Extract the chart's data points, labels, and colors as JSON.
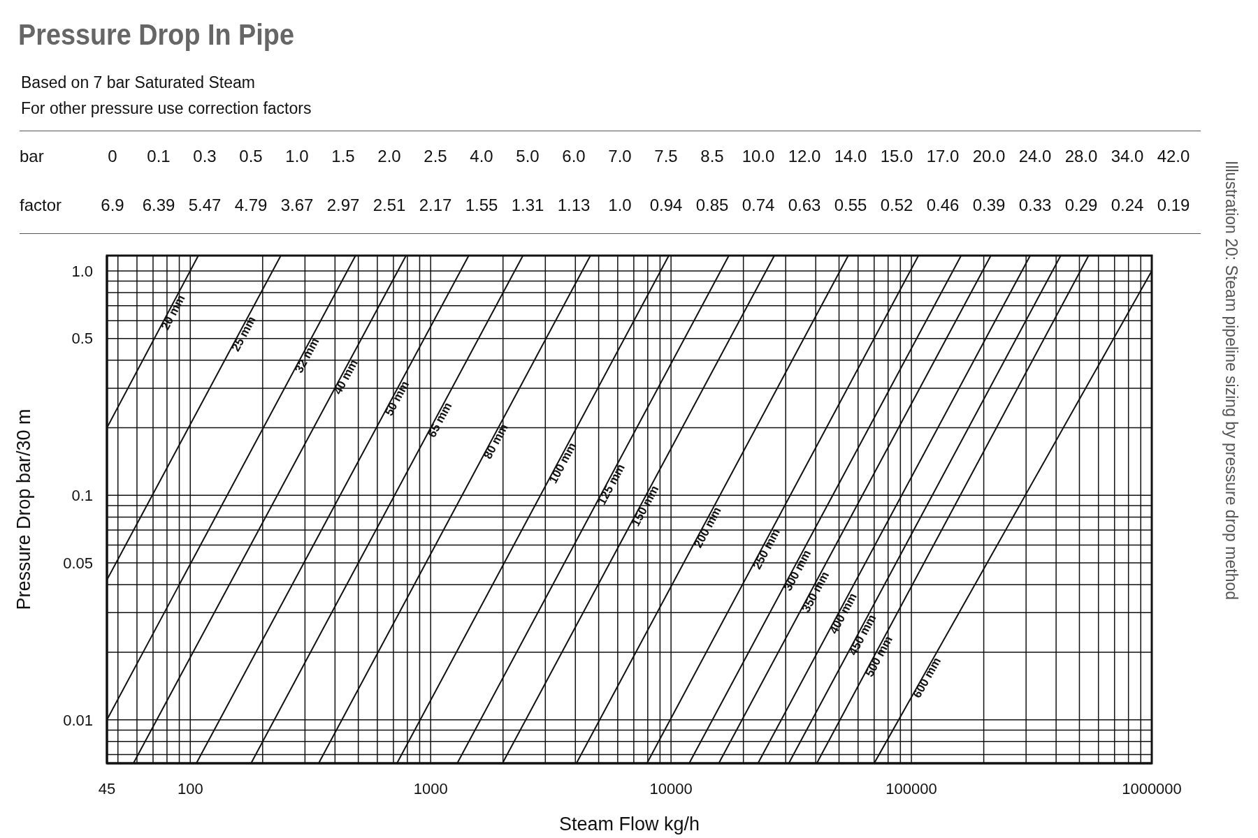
{
  "chart_data": {
    "type": "line",
    "title": "Pressure Drop In Pipe",
    "subtitle": "Based on 7 bar Saturated Steam\nFor other pressure use correction factors",
    "xlabel": "Steam Flow  kg/h",
    "ylabel": "Pressure Drop bar/30 m",
    "annotations": [
      "bar",
      "0",
      "0.1",
      "0.3",
      "0.5",
      "1.0",
      "1.5",
      "2.0",
      "2.5",
      "4.0",
      "5.0",
      "6.0",
      "7.0",
      "7.5",
      "8.5",
      "10.0",
      "12.0",
      "14.0",
      "15.0",
      "17.0",
      "20.0",
      "24.0",
      "28.0",
      "34.0",
      "42.0",
      "factor",
      "6.9",
      "6.39",
      "5.47",
      "4.79",
      "3.67",
      "2.97",
      "2.51",
      "2.17",
      "1.55",
      "1.31",
      "1.13",
      "1.0",
      "0.94",
      "0.85",
      "0.74",
      "0.63",
      "0.55",
      "0.52",
      "0.46",
      "0.39",
      "0.33",
      "0.29",
      "0.24",
      "0.19",
      "Illustration 20: Steam pipeline sizing by pressure drop method"
    ],
    "log": "xy",
    "grid": true,
    "marker": "none",
    "line_style": "solid",
    "xlim": [
      45,
      1000000
    ],
    "ylim": [
      0.0064,
      1.17
    ],
    "xticks": [
      45,
      {
        "value": 50,
        "label": null
      },
      {
        "value": 60,
        "label": null
      },
      {
        "value": 70,
        "label": null
      },
      {
        "value": 80,
        "label": null
      },
      {
        "value": 90,
        "label": null
      },
      100,
      {
        "value": 200,
        "label": null
      },
      {
        "value": 300,
        "label": null
      },
      {
        "value": 400,
        "label": null
      },
      {
        "value": 500,
        "label": null
      },
      {
        "value": 600,
        "label": null
      },
      {
        "value": 700,
        "label": null
      },
      {
        "value": 800,
        "label": null
      },
      {
        "value": 900,
        "label": null
      },
      1000,
      {
        "value": 2000,
        "label": null
      },
      {
        "value": 3000,
        "label": null
      },
      {
        "value": 4000,
        "label": null
      },
      {
        "value": 5000,
        "label": null
      },
      {
        "value": 6000,
        "label": null
      },
      {
        "value": 7000,
        "label": null
      },
      {
        "value": 8000,
        "label": null
      },
      {
        "value": 9000,
        "label": null
      },
      10000,
      {
        "value": 20000,
        "label": null
      },
      {
        "value": 30000,
        "label": null
      },
      {
        "value": 40000,
        "label": null
      },
      {
        "value": 50000,
        "label": null
      },
      {
        "value": 60000,
        "label": null
      },
      {
        "value": 70000,
        "label": null
      },
      {
        "value": 80000,
        "label": null
      },
      {
        "value": 90000,
        "label": null
      },
      100000,
      {
        "value": 200000,
        "label": null
      },
      {
        "value": 300000,
        "label": null
      },
      {
        "value": 400000,
        "label": null
      },
      {
        "value": 500000,
        "label": null
      },
      {
        "value": 600000,
        "label": null
      },
      {
        "value": 700000,
        "label": null
      },
      {
        "value": 800000,
        "label": null
      },
      {
        "value": 900000,
        "label": null
      },
      1000000
    ],
    "yticks": [
      {
        "value": 0.007,
        "label": null
      },
      {
        "value": 0.008,
        "label": null
      },
      {
        "value": 0.009,
        "label": null
      },
      0.01,
      {
        "value": 0.02,
        "label": null
      },
      {
        "value": 0.03,
        "label": null
      },
      {
        "value": 0.04,
        "label": null
      },
      0.05,
      {
        "value": 0.06,
        "label": null
      },
      {
        "value": 0.07,
        "label": null
      },
      {
        "value": 0.08,
        "label": null
      },
      {
        "value": 0.09,
        "label": null
      },
      0.1,
      {
        "value": 0.2,
        "label": null
      },
      {
        "value": 0.3,
        "label": null
      },
      {
        "value": 0.4,
        "label": null
      },
      0.5,
      {
        "value": 0.6,
        "label": null
      },
      {
        "value": 0.7,
        "label": null
      },
      {
        "value": 0.8,
        "label": null
      },
      {
        "value": 0.9,
        "label": null
      },
      {
        "value": 1,
        "label": "1.0"
      }
    ],
    "series": [
      {
        "name": "20 mm",
        "color": "#111111",
        "x": [
          45,
          108
        ],
        "values": [
          0.2,
          1.17
        ]
      },
      {
        "name": "25 mm",
        "color": "#111111",
        "x": [
          45,
          238
        ],
        "values": [
          0.042,
          1.17
        ]
      },
      {
        "name": "32 mm",
        "color": "#111111",
        "x": [
          45,
          487
        ],
        "values": [
          0.01,
          1.17
        ]
      },
      {
        "name": "40 mm",
        "color": "#111111",
        "x": [
          58,
          790
        ],
        "values": [
          0.0064,
          1.17
        ]
      },
      {
        "name": "50 mm",
        "color": "#111111",
        "x": [
          106,
          1440
        ],
        "values": [
          0.0064,
          1.17
        ]
      },
      {
        "name": "65 mm",
        "color": "#111111",
        "x": [
          179,
          2420
        ],
        "values": [
          0.0064,
          1.17
        ]
      },
      {
        "name": "80 mm",
        "color": "#111111",
        "x": [
          342,
          4620
        ],
        "values": [
          0.0064,
          1.17
        ]
      },
      {
        "name": "100 mm",
        "color": "#111111",
        "x": [
          724,
          9790
        ],
        "values": [
          0.0064,
          1.17
        ]
      },
      {
        "name": "125 mm",
        "color": "#111111",
        "x": [
          1290,
          17400
        ],
        "values": [
          0.0064,
          1.17
        ]
      },
      {
        "name": "150 mm",
        "color": "#111111",
        "x": [
          1990,
          26900
        ],
        "values": [
          0.0064,
          1.17
        ]
      },
      {
        "name": "200 mm",
        "color": "#111111",
        "x": [
          4040,
          54600
        ],
        "values": [
          0.0064,
          1.17
        ]
      },
      {
        "name": "250 mm",
        "color": "#111111",
        "x": [
          7940,
          107000
        ],
        "values": [
          0.0064,
          1.17
        ]
      },
      {
        "name": "300 mm",
        "color": "#111111",
        "x": [
          11900,
          161000
        ],
        "values": [
          0.0064,
          1.17
        ]
      },
      {
        "name": "350 mm",
        "color": "#111111",
        "x": [
          15800,
          214000
        ],
        "values": [
          0.0064,
          1.17
        ]
      },
      {
        "name": "400 mm",
        "color": "#111111",
        "x": [
          23000,
          312000
        ],
        "values": [
          0.0064,
          1.17
        ]
      },
      {
        "name": "450 mm",
        "color": "#111111",
        "x": [
          30900,
          418000
        ],
        "values": [
          0.0064,
          1.17
        ]
      },
      {
        "name": "500 mm",
        "color": "#111111",
        "x": [
          40400,
          546000
        ],
        "values": [
          0.0064,
          1.17
        ]
      },
      {
        "name": "600 mm",
        "color": "#111111",
        "x": [
          70000,
          1000000
        ],
        "values": [
          0.0064,
          1.0
        ]
      }
    ]
  }
}
